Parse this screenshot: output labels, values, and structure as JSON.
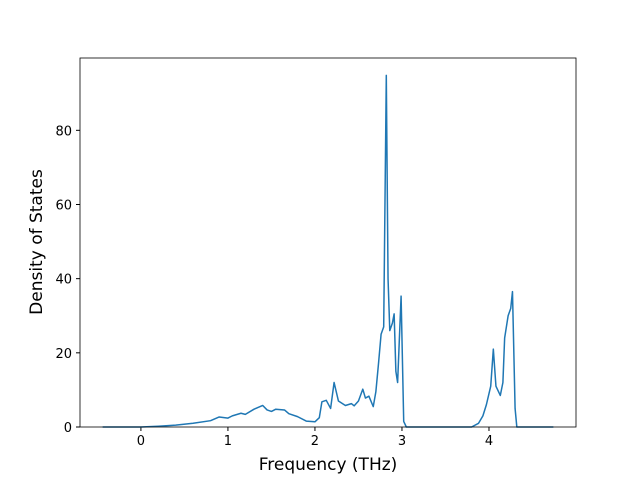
{
  "chart_data": {
    "type": "line",
    "xlabel": "Frequency (THz)",
    "ylabel": "Density of States",
    "x": [
      -0.44,
      0,
      0.2,
      0.4,
      0.6,
      0.8,
      0.9,
      1.0,
      1.05,
      1.15,
      1.2,
      1.3,
      1.4,
      1.45,
      1.5,
      1.55,
      1.65,
      1.7,
      1.8,
      1.9,
      2.0,
      2.05,
      2.08,
      2.13,
      2.18,
      2.22,
      2.27,
      2.35,
      2.42,
      2.45,
      2.5,
      2.55,
      2.58,
      2.62,
      2.67,
      2.7,
      2.73,
      2.76,
      2.79,
      2.82,
      2.84,
      2.86,
      2.89,
      2.91,
      2.93,
      2.95,
      2.99,
      3.02,
      3.05,
      3.5,
      3.8,
      3.88,
      3.93,
      3.97,
      4.02,
      4.05,
      4.08,
      4.13,
      4.16,
      4.18,
      4.22,
      4.25,
      4.27,
      4.3,
      4.32,
      4.74
    ],
    "series": [
      {
        "name": "DOS",
        "color": "#1f77b4",
        "values": [
          0,
          0,
          0.2,
          0.5,
          1.0,
          1.7,
          2.7,
          2.4,
          3.0,
          3.7,
          3.4,
          4.8,
          5.8,
          4.6,
          4.2,
          4.8,
          4.6,
          3.6,
          2.8,
          1.6,
          1.4,
          2.5,
          6.8,
          7.2,
          5.0,
          12.0,
          7.0,
          5.8,
          6.3,
          5.7,
          7.0,
          10.2,
          7.8,
          8.3,
          5.5,
          9.5,
          17,
          25,
          27,
          94.8,
          40,
          26,
          28,
          30.5,
          15,
          12,
          35.3,
          1.5,
          0,
          0,
          0,
          1,
          3,
          6,
          11,
          21,
          11,
          8.5,
          12,
          24,
          30,
          32,
          36.5,
          5,
          0,
          0
        ]
      }
    ],
    "xlim": [
      -0.7,
      5.0
    ],
    "xticks": [
      0,
      1,
      2,
      3,
      4
    ],
    "ylim": [
      0,
      99.5
    ],
    "yticks": [
      0,
      20,
      40,
      60,
      80
    ]
  }
}
